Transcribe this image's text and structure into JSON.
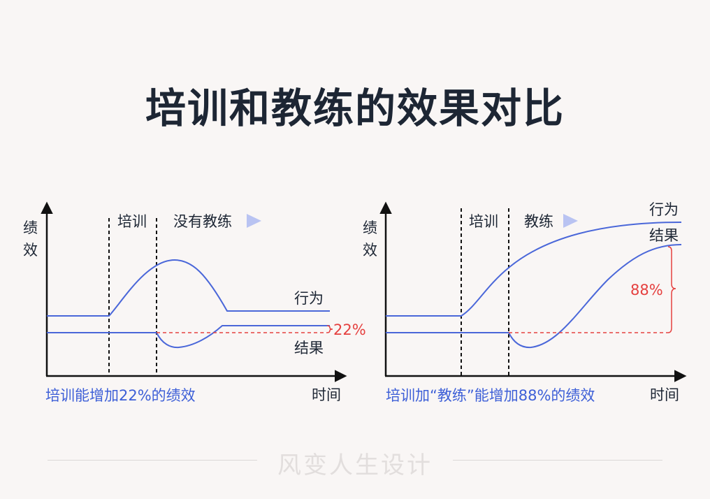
{
  "title": "培训和教练的效果对比",
  "footer": {
    "watermark": "风变人生设计"
  },
  "colors": {
    "curve": "#4a67d9",
    "accent_red": "#e5403f",
    "caption_blue": "#3d5fd7",
    "arrow_marker": "#b9c3f2",
    "text": "#1d2634"
  },
  "panels": [
    {
      "y_label_line1": "绩",
      "y_label_line2": "效",
      "x_label": "时间",
      "phase_training": "培训",
      "phase_after": "没有教练",
      "behavior_label": "行为",
      "result_label": "结果",
      "gain_label": "22%",
      "caption": "培训能增加22%的绩效"
    },
    {
      "y_label_line1": "绩",
      "y_label_line2": "效",
      "x_label": "时间",
      "phase_training": "培训",
      "phase_after": "教练",
      "behavior_label": "行为",
      "result_label": "结果",
      "gain_label": "88%",
      "caption": "培训加“教练”能增加88%的绩效"
    }
  ]
}
